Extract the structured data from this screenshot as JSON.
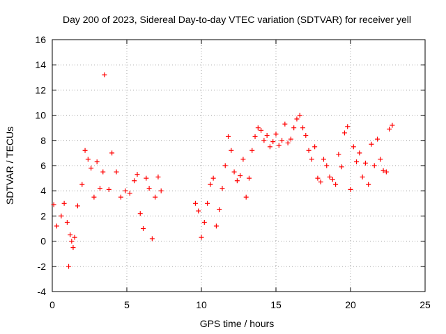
{
  "chart_data": {
    "type": "scatter",
    "title": "Day 200 of 2023, Sidereal Day-to-day VTEC variation (SDTVAR) for receiver yell",
    "xlabel": "GPS time / hours",
    "ylabel": "SDTVAR / TECUs",
    "xlim": [
      0,
      25
    ],
    "ylim": [
      -4,
      16
    ],
    "xticks": [
      0,
      5,
      10,
      15,
      20,
      25
    ],
    "yticks": [
      -4,
      -2,
      0,
      2,
      4,
      6,
      8,
      10,
      12,
      14,
      16
    ],
    "grid": true,
    "marker": "+",
    "color": "#ff0000",
    "series": [
      {
        "name": "SDTVAR",
        "x": [
          0.1,
          0.3,
          0.6,
          0.8,
          1.0,
          1.1,
          1.2,
          1.3,
          1.4,
          1.5,
          1.7,
          2.0,
          2.2,
          2.4,
          2.6,
          2.8,
          3.0,
          3.2,
          3.4,
          3.5,
          3.8,
          4.0,
          4.3,
          4.6,
          4.9,
          5.2,
          5.5,
          5.7,
          5.9,
          6.1,
          6.3,
          6.5,
          6.7,
          6.9,
          7.1,
          7.3,
          9.6,
          9.8,
          10.0,
          10.2,
          10.4,
          10.6,
          10.8,
          11.0,
          11.2,
          11.4,
          11.6,
          11.8,
          12.0,
          12.2,
          12.4,
          12.6,
          12.8,
          13.0,
          13.2,
          13.4,
          13.6,
          13.8,
          14.0,
          14.2,
          14.4,
          14.6,
          14.8,
          15.0,
          15.2,
          15.4,
          15.6,
          15.8,
          16.0,
          16.2,
          16.4,
          16.6,
          16.8,
          17.0,
          17.2,
          17.4,
          17.6,
          17.8,
          18.0,
          18.2,
          18.4,
          18.6,
          18.8,
          19.0,
          19.2,
          19.4,
          19.6,
          19.8,
          20.0,
          20.2,
          20.4,
          20.6,
          20.8,
          21.0,
          21.2,
          21.4,
          21.6,
          21.8,
          22.0,
          22.2,
          22.4,
          22.6,
          22.8
        ],
        "y": [
          2.9,
          1.2,
          2.0,
          3.0,
          1.5,
          -2.0,
          0.5,
          0.0,
          -0.5,
          0.3,
          2.8,
          4.5,
          7.2,
          6.5,
          5.8,
          3.5,
          6.3,
          4.2,
          5.5,
          13.2,
          4.1,
          7.0,
          5.5,
          3.5,
          4.0,
          3.8,
          4.8,
          5.3,
          2.2,
          1.0,
          5.0,
          4.2,
          0.2,
          3.5,
          5.1,
          4.0,
          3.0,
          2.4,
          0.3,
          1.5,
          3.0,
          4.5,
          5.0,
          1.2,
          2.5,
          4.2,
          6.0,
          8.3,
          7.2,
          5.5,
          4.8,
          5.2,
          6.5,
          3.5,
          5.0,
          7.2,
          8.3,
          9.0,
          8.8,
          8.0,
          8.4,
          7.5,
          7.9,
          8.5,
          7.6,
          8.0,
          9.3,
          7.8,
          8.1,
          9.0,
          9.7,
          10.0,
          9.0,
          8.4,
          7.2,
          6.5,
          7.5,
          5.0,
          4.7,
          6.5,
          6.0,
          5.1,
          4.9,
          4.5,
          6.9,
          5.9,
          8.6,
          9.1,
          4.1,
          7.5,
          6.3,
          7.0,
          5.1,
          6.2,
          4.5,
          7.7,
          6.0,
          8.1,
          6.5,
          5.6,
          5.5,
          8.9,
          9.2
        ]
      }
    ]
  }
}
